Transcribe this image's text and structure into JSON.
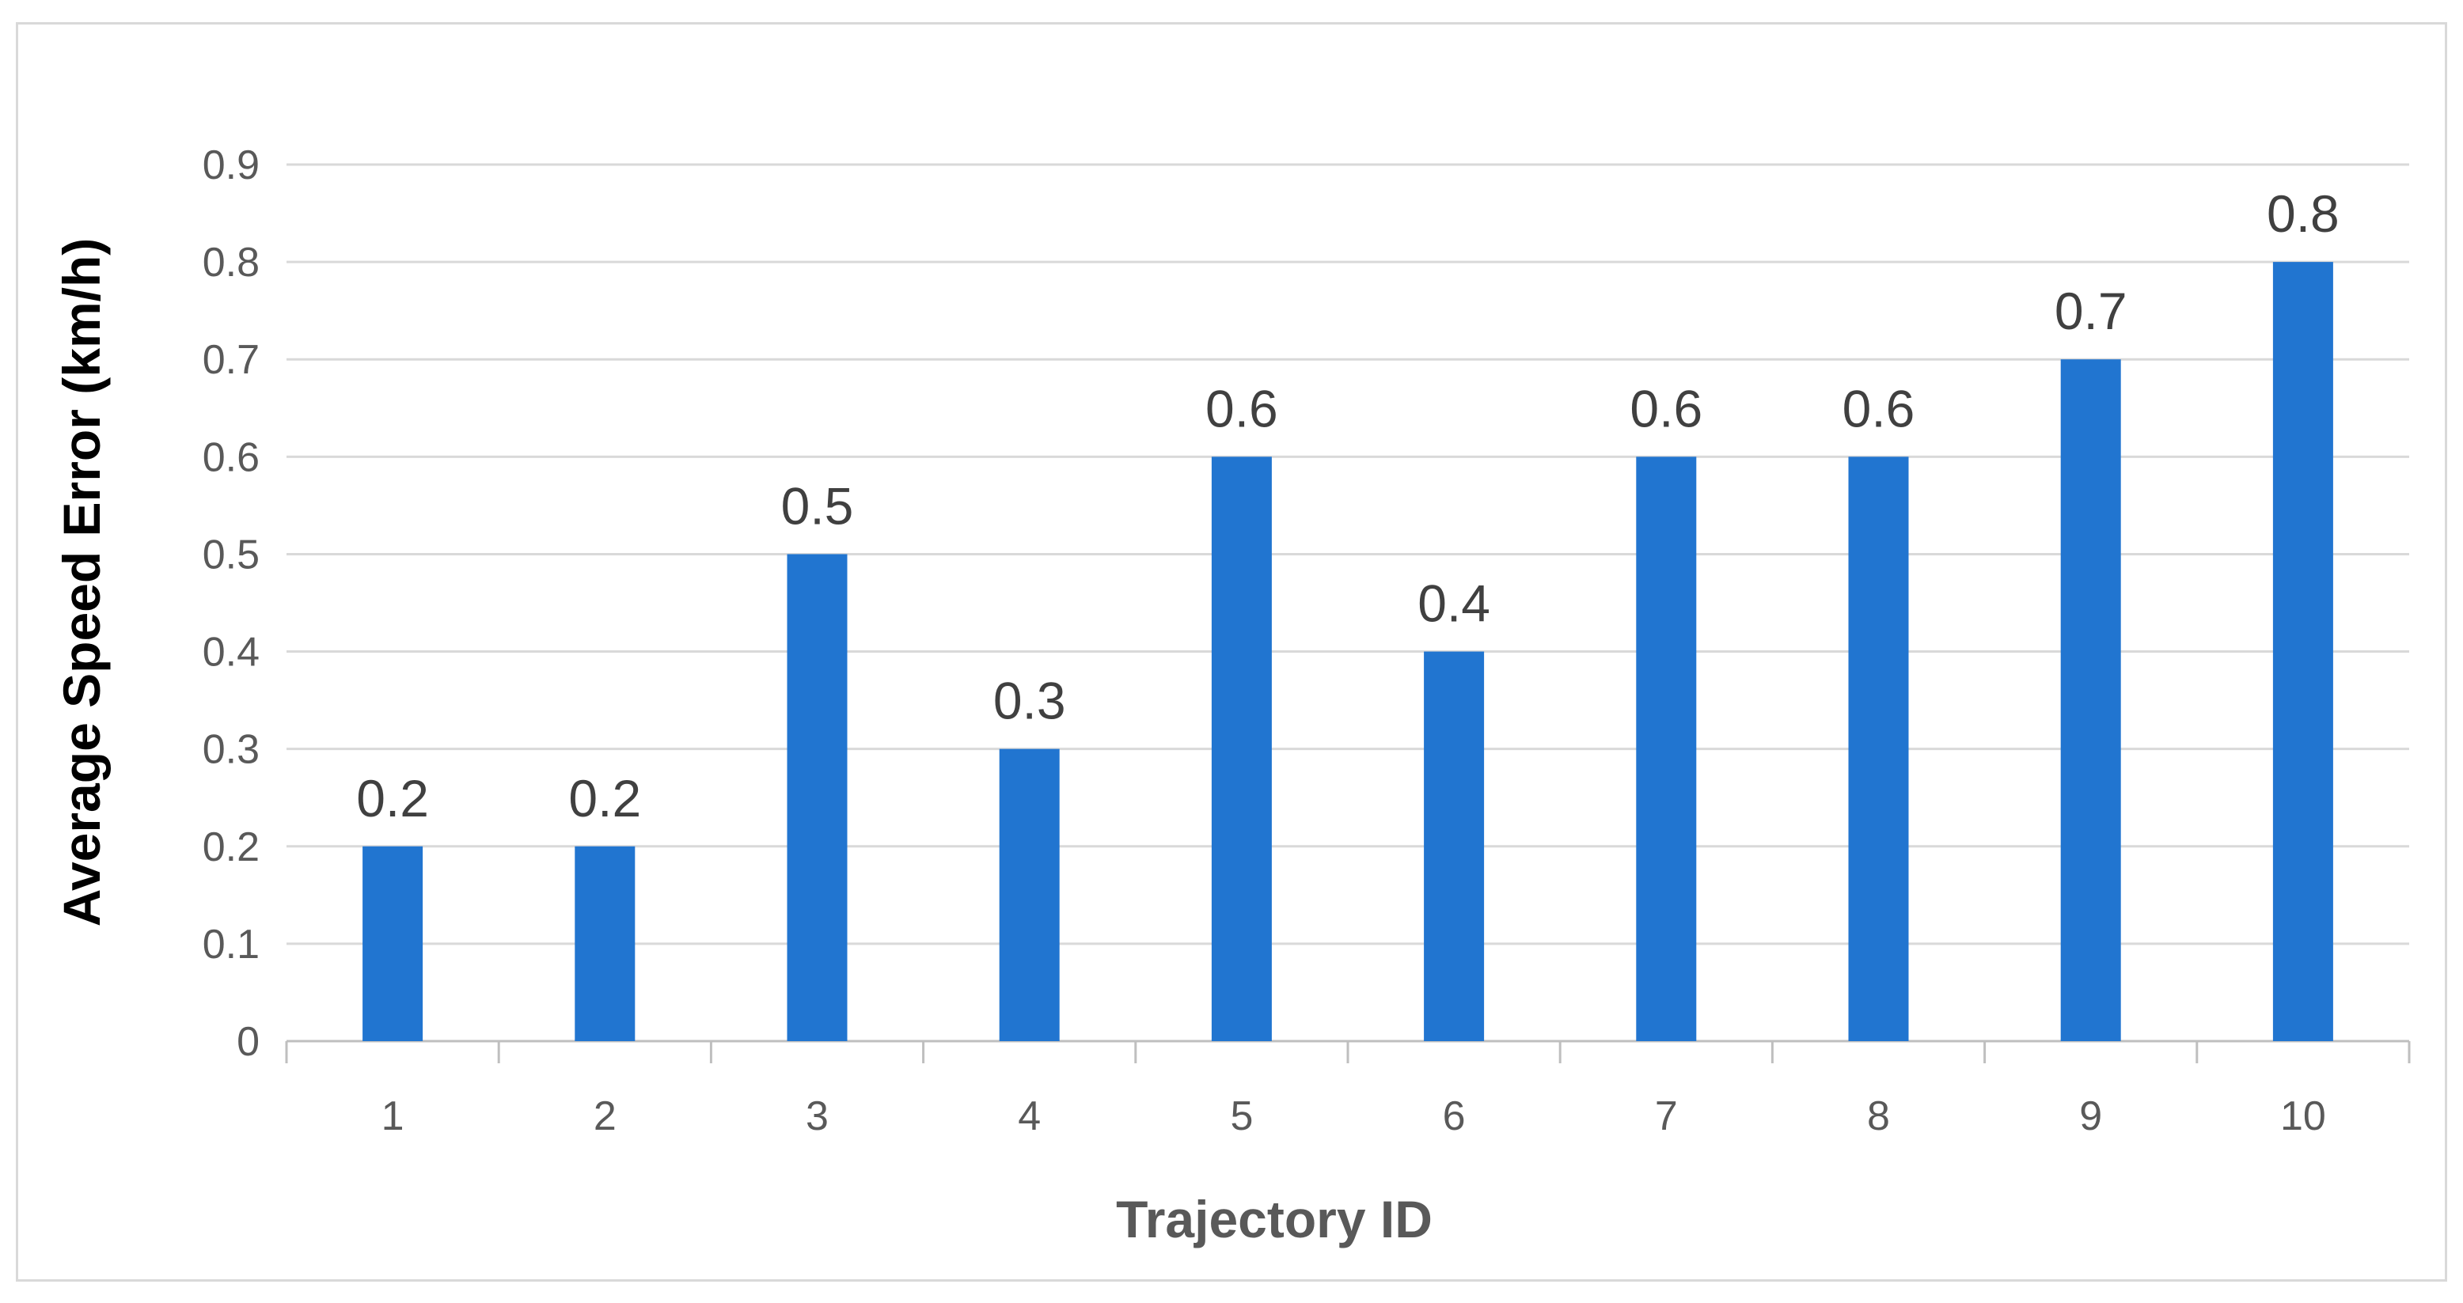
{
  "chart_data": {
    "type": "bar",
    "title": "",
    "xlabel": "Trajectory ID",
    "ylabel": "Average Speed Error  (km/h)",
    "categories": [
      "1",
      "2",
      "3",
      "4",
      "5",
      "6",
      "7",
      "8",
      "9",
      "10"
    ],
    "values": [
      0.2,
      0.2,
      0.5,
      0.3,
      0.6,
      0.4,
      0.6,
      0.6,
      0.7,
      0.8
    ],
    "data_labels": [
      "0.2",
      "0.2",
      "0.5",
      "0.3",
      "0.6",
      "0.4",
      "0.6",
      "0.6",
      "0.7",
      "0.8"
    ],
    "ylim": [
      0,
      0.9
    ],
    "yticks": [
      "0",
      "0.1",
      "0.2",
      "0.3",
      "0.4",
      "0.5",
      "0.6",
      "0.7",
      "0.8",
      "0.9"
    ],
    "grid": true,
    "legend": "none",
    "colors": {
      "bar": "#2175d0",
      "gridline": "#d9d9d9",
      "ylabel": "#000000",
      "xlabel": "#595959"
    }
  }
}
